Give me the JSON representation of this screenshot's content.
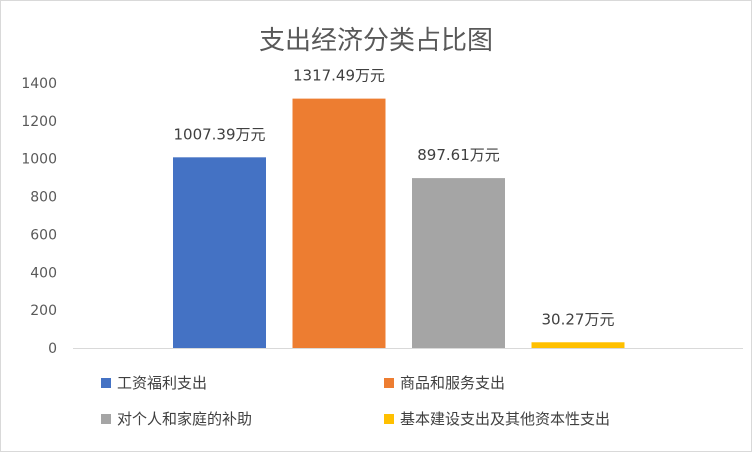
{
  "chart_data": {
    "type": "bar",
    "title": "支出经济分类占比图",
    "xlabel": "",
    "ylabel": "",
    "ylim": [
      0,
      1400
    ],
    "yticks": [
      0,
      200,
      400,
      600,
      800,
      1000,
      1200,
      1400
    ],
    "grid": false,
    "legend_position": "bottom",
    "series": [
      {
        "name": "工资福利支出",
        "value": 1007.39,
        "label": "1007.39万元",
        "color": "#4472C4"
      },
      {
        "name": "商品和服务支出",
        "value": 1317.49,
        "label": "1317.49万元",
        "color": "#ED7D31"
      },
      {
        "name": "对个人和家庭的补助",
        "value": 897.61,
        "label": "897.61万元",
        "color": "#A5A5A5"
      },
      {
        "name": "基本建设支出及其他资本性支出",
        "value": 30.27,
        "label": "30.27万元",
        "color": "#FFC000"
      }
    ]
  }
}
